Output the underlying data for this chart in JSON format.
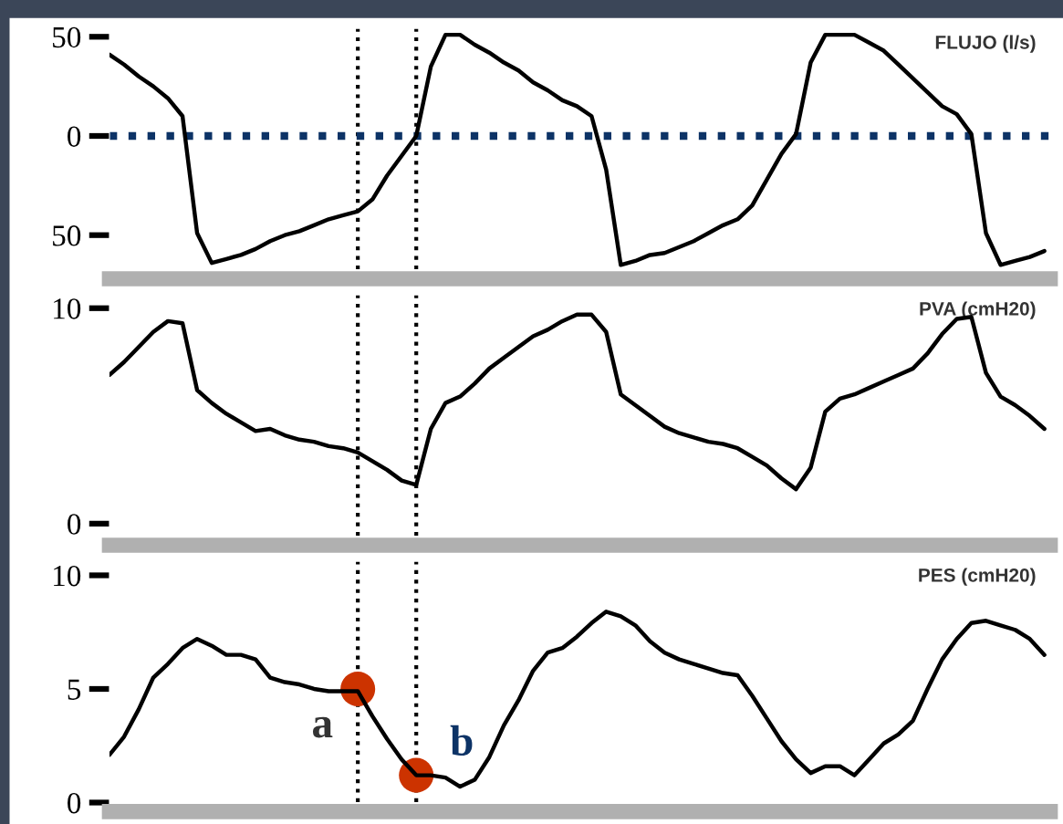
{
  "chart_data": [
    {
      "type": "line",
      "title": "FLUJO (l/s)",
      "tick_labels": "y",
      "ylim": [
        -72,
        54
      ],
      "yticks": [
        {
          "value": -50,
          "label": "50"
        },
        0,
        50
      ],
      "categories": [
        null,
        null,
        null,
        null,
        null,
        null,
        null,
        null,
        null,
        null,
        null,
        null,
        null,
        null,
        null,
        null,
        null,
        null,
        null,
        null,
        null,
        null,
        null,
        null,
        null,
        null,
        null,
        null,
        null,
        null,
        null,
        null,
        null,
        null,
        null,
        null,
        null,
        null,
        null,
        null,
        null,
        null,
        null,
        null,
        null,
        null,
        null,
        null,
        null,
        null,
        null,
        null,
        null,
        null,
        null,
        null,
        null,
        null,
        null,
        null,
        null,
        null,
        null,
        null,
        null
      ],
      "series": [
        {
          "color": "#000000",
          "values": [
            41,
            36,
            30,
            25,
            19,
            10,
            -49,
            -64,
            -62,
            -60,
            -57,
            -53,
            -50,
            -48,
            -45,
            -42,
            -40,
            -38,
            -32,
            -20,
            -10,
            0,
            35,
            51,
            51,
            46,
            42,
            37,
            33,
            27,
            23,
            18,
            15,
            10,
            -17,
            -65,
            -63,
            -60,
            -59,
            -56,
            -53,
            -49,
            -45,
            -42,
            -35,
            -22,
            -9,
            1,
            37,
            51,
            51,
            51,
            47,
            43,
            36,
            29,
            22,
            15,
            11,
            1,
            -49,
            -65,
            -63,
            -61,
            -58
          ]
        }
      ],
      "ref_lines": [
        {
          "axis": "y",
          "value": 0,
          "color": "#0d3366",
          "line_style": "dotted"
        }
      ]
    },
    {
      "type": "line",
      "title": "PVA (cmH20)",
      "tick_labels": "y",
      "ylim": [
        -1,
        10.6
      ],
      "yticks": [
        0,
        10
      ],
      "categories": [
        null,
        null,
        null,
        null,
        null,
        null,
        null,
        null,
        null,
        null,
        null,
        null,
        null,
        null,
        null,
        null,
        null,
        null,
        null,
        null,
        null,
        null,
        null,
        null,
        null,
        null,
        null,
        null,
        null,
        null,
        null,
        null,
        null,
        null,
        null,
        null,
        null,
        null,
        null,
        null,
        null,
        null,
        null,
        null,
        null,
        null,
        null,
        null,
        null,
        null,
        null,
        null,
        null,
        null,
        null,
        null,
        null,
        null,
        null,
        null,
        null,
        null,
        null,
        null,
        null
      ],
      "series": [
        {
          "color": "#000000",
          "values": [
            6.9,
            7.5,
            8.2,
            8.9,
            9.4,
            9.3,
            6.2,
            5.6,
            5.1,
            4.7,
            4.3,
            4.4,
            4.1,
            3.9,
            3.8,
            3.6,
            3.5,
            3.3,
            2.9,
            2.5,
            2.0,
            1.8,
            4.4,
            5.6,
            5.9,
            6.5,
            7.2,
            7.7,
            8.2,
            8.7,
            9.0,
            9.4,
            9.7,
            9.7,
            8.9,
            6.0,
            5.5,
            5.0,
            4.5,
            4.2,
            4.0,
            3.8,
            3.7,
            3.5,
            3.1,
            2.7,
            2.1,
            1.6,
            2.6,
            5.2,
            5.8,
            6.0,
            6.3,
            6.6,
            6.9,
            7.2,
            7.9,
            8.8,
            9.5,
            9.6,
            7.0,
            5.9,
            5.5,
            5.0,
            4.4
          ]
        }
      ]
    },
    {
      "type": "line",
      "title": "PES (cmH20)",
      "tick_labels": "y",
      "ylim": [
        -0.4,
        10.6
      ],
      "yticks": [
        0,
        5,
        10
      ],
      "categories": [
        null,
        null,
        null,
        null,
        null,
        null,
        null,
        null,
        null,
        null,
        null,
        null,
        null,
        null,
        null,
        null,
        null,
        null,
        null,
        null,
        null,
        null,
        null,
        null,
        null,
        null,
        null,
        null,
        null,
        null,
        null,
        null,
        null,
        null,
        null,
        null,
        null,
        null,
        null,
        null,
        null,
        null,
        null,
        null,
        null,
        null,
        null,
        null,
        null,
        null,
        null,
        null,
        null,
        null,
        null,
        null,
        null,
        null,
        null,
        null,
        null,
        null,
        null,
        null,
        null
      ],
      "series": [
        {
          "color": "#000000",
          "values": [
            2.1,
            2.9,
            4.1,
            5.5,
            6.1,
            6.8,
            7.2,
            6.9,
            6.5,
            6.5,
            6.3,
            5.5,
            5.3,
            5.2,
            5.0,
            4.9,
            4.9,
            4.9,
            3.8,
            2.8,
            1.9,
            1.2,
            1.2,
            1.1,
            0.7,
            1.0,
            2.0,
            3.4,
            4.5,
            5.8,
            6.6,
            6.8,
            7.3,
            7.9,
            8.4,
            8.2,
            7.8,
            7.1,
            6.6,
            6.3,
            6.1,
            5.9,
            5.7,
            5.6,
            4.7,
            3.7,
            2.7,
            1.9,
            1.3,
            1.6,
            1.6,
            1.2,
            1.9,
            2.6,
            3.0,
            3.6,
            5.0,
            6.3,
            7.2,
            7.9,
            8.0,
            7.8,
            7.6,
            7.2,
            6.5
          ]
        },
        {
          "type": "scatter",
          "marker": "circle",
          "color": "#cc3300",
          "values": [
            null,
            null,
            null,
            null,
            null,
            null,
            null,
            null,
            null,
            null,
            null,
            null,
            null,
            null,
            null,
            null,
            null,
            5,
            null,
            null,
            null,
            1.2,
            null,
            null,
            null,
            null,
            null,
            null,
            null,
            null,
            null,
            null,
            null,
            null,
            null,
            null,
            null,
            null,
            null,
            null,
            null,
            null,
            null,
            null,
            null,
            null,
            null,
            null,
            null,
            null,
            null,
            null,
            null,
            null,
            null,
            null,
            null,
            null,
            null,
            null,
            null,
            null,
            null,
            null,
            null
          ]
        }
      ],
      "annotations": [
        "a",
        "b"
      ]
    }
  ]
}
